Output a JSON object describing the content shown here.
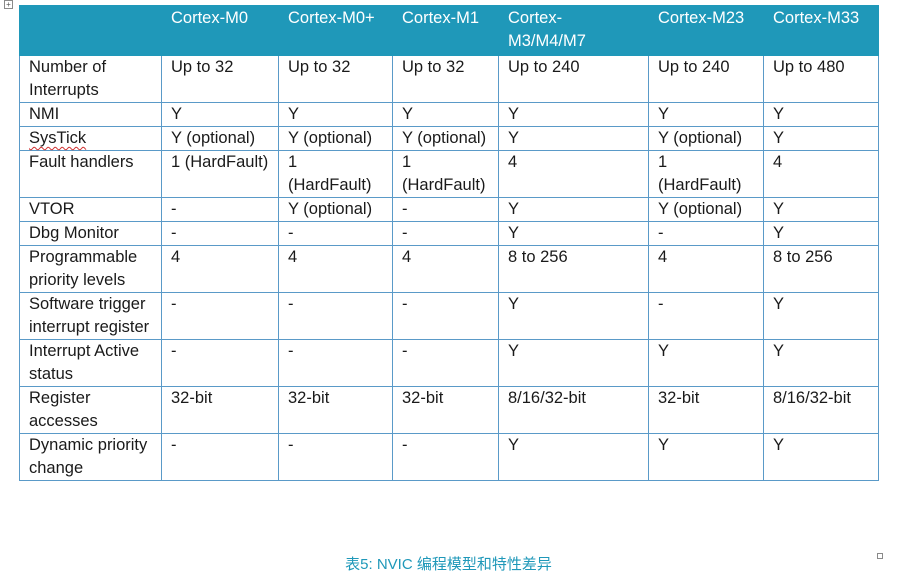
{
  "table": {
    "header": {
      "corner": "",
      "columns": [
        "Cortex-M0",
        "Cortex-M0+",
        "Cortex-M1",
        "Cortex-M3/M4/M7",
        "Cortex-M23",
        "Cortex-M33"
      ]
    },
    "rows": [
      {
        "feature": "Number of Interrupts",
        "values": [
          "Up to 32",
          "Up to 32",
          "Up to 32",
          "Up to 240",
          "Up to 240",
          "Up to 480"
        ]
      },
      {
        "feature": "NMI",
        "values": [
          "Y",
          "Y",
          "Y",
          "Y",
          "Y",
          "Y"
        ]
      },
      {
        "feature": "SysTick",
        "values": [
          "Y (optional)",
          "Y (optional)",
          "Y (optional)",
          "Y",
          "Y (optional)",
          "Y"
        ]
      },
      {
        "feature": "Fault handlers",
        "values": [
          "1 (HardFault)",
          "1 (HardFault)",
          "1 (HardFault)",
          "4",
          "1 (HardFault)",
          "4"
        ]
      },
      {
        "feature": "VTOR",
        "values": [
          "-",
          "Y (optional)",
          "-",
          "Y",
          "Y (optional)",
          "Y"
        ]
      },
      {
        "feature": "Dbg Monitor",
        "values": [
          "-",
          "-",
          "-",
          "Y",
          "-",
          "Y"
        ]
      },
      {
        "feature": "Programmable priority levels",
        "values": [
          "4",
          "4",
          "4",
          "8 to 256",
          "4",
          "8 to 256"
        ]
      },
      {
        "feature": "Software trigger interrupt register",
        "values": [
          "-",
          "-",
          "-",
          "Y",
          "-",
          "Y"
        ]
      },
      {
        "feature": "Interrupt Active status",
        "values": [
          "-",
          "-",
          "-",
          "Y",
          "Y",
          "Y"
        ]
      },
      {
        "feature": "Register accesses",
        "values": [
          "32-bit",
          "32-bit",
          "32-bit",
          "8/16/32-bit",
          "32-bit",
          "8/16/32-bit"
        ]
      },
      {
        "feature": "Dynamic priority change",
        "values": [
          "-",
          "-",
          "-",
          "Y",
          "Y",
          "Y"
        ]
      }
    ]
  },
  "caption": "表5: NVIC 编程模型和特性差异",
  "icons": {
    "anchor": "table-anchor-icon",
    "resize": "table-resize-handle"
  },
  "colors": {
    "header_bg": "#1f98b9",
    "border": "#5a9ac8",
    "caption": "#1f98b9"
  }
}
